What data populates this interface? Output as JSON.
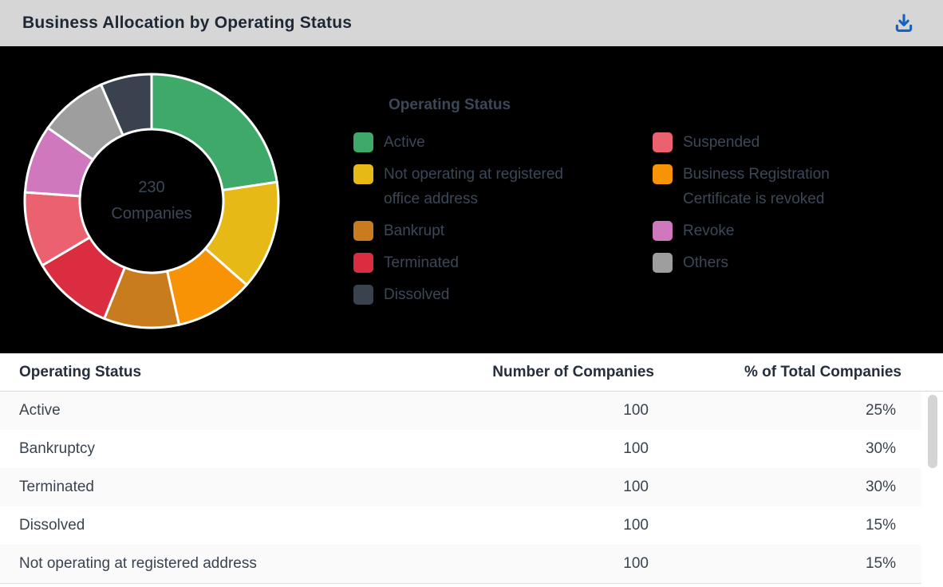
{
  "header": {
    "title": "Business Allocation by Operating Status",
    "download_tooltip": "Download"
  },
  "colors": {
    "header_bg": "#d6d6d6",
    "title_text": "#1e2835",
    "download_blue": "#1565c0",
    "chart_bg": "#000000",
    "chart_text": "#3c4757",
    "row_alt": "#fafafa",
    "row_text": "#3a4350",
    "scrollbar": "#d4d4d4"
  },
  "chart_data": [
    {
      "type": "pie",
      "subtype": "donut",
      "legend_title": "Operating Status",
      "center_text": [
        "230",
        "Companies"
      ],
      "total": 230,
      "start_angle_deg": 0,
      "direction": "clockwise",
      "legend_position": "right, two columns",
      "series": [
        {
          "name": "Active",
          "value": 52,
          "color": "#3fa969"
        },
        {
          "name": "Not operating at registered office address",
          "value": 32,
          "color": "#e7b917"
        },
        {
          "name": "Business Registration Certificate is revoked",
          "value": 23,
          "color": "#f89306"
        },
        {
          "name": "Bankrupt",
          "value": 22,
          "color": "#c97c1e"
        },
        {
          "name": "Terminated",
          "value": 24,
          "color": "#da2d3f"
        },
        {
          "name": "Suspended",
          "value": 22,
          "color": "#ec6170"
        },
        {
          "name": "Revoke",
          "value": 20,
          "color": "#d078be"
        },
        {
          "name": "Others",
          "value": 20,
          "color": "#9e9e9e"
        },
        {
          "name": "Dissolved",
          "value": 15,
          "color": "#3a424f"
        }
      ],
      "legend_order_left": [
        "Active",
        "Not operating at registered office address",
        "Bankrupt",
        "Terminated",
        "Dissolved"
      ],
      "legend_order_right": [
        "Suspended",
        "Business Registration Certificate is revoked",
        "Revoke",
        "Others"
      ]
    },
    {
      "type": "table",
      "columns": [
        "Operating Status",
        "Number of Companies",
        "% of  Total Companies"
      ],
      "rows": [
        {
          "status": "Active",
          "count": "100",
          "pct": "25%"
        },
        {
          "status": "Bankruptcy",
          "count": "100",
          "pct": "30%"
        },
        {
          "status": "Terminated",
          "count": "100",
          "pct": "30%"
        },
        {
          "status": "Dissolved",
          "count": "100",
          "pct": "15%"
        },
        {
          "status": "Not operating at registered address",
          "count": "100",
          "pct": "15%"
        }
      ]
    }
  ]
}
